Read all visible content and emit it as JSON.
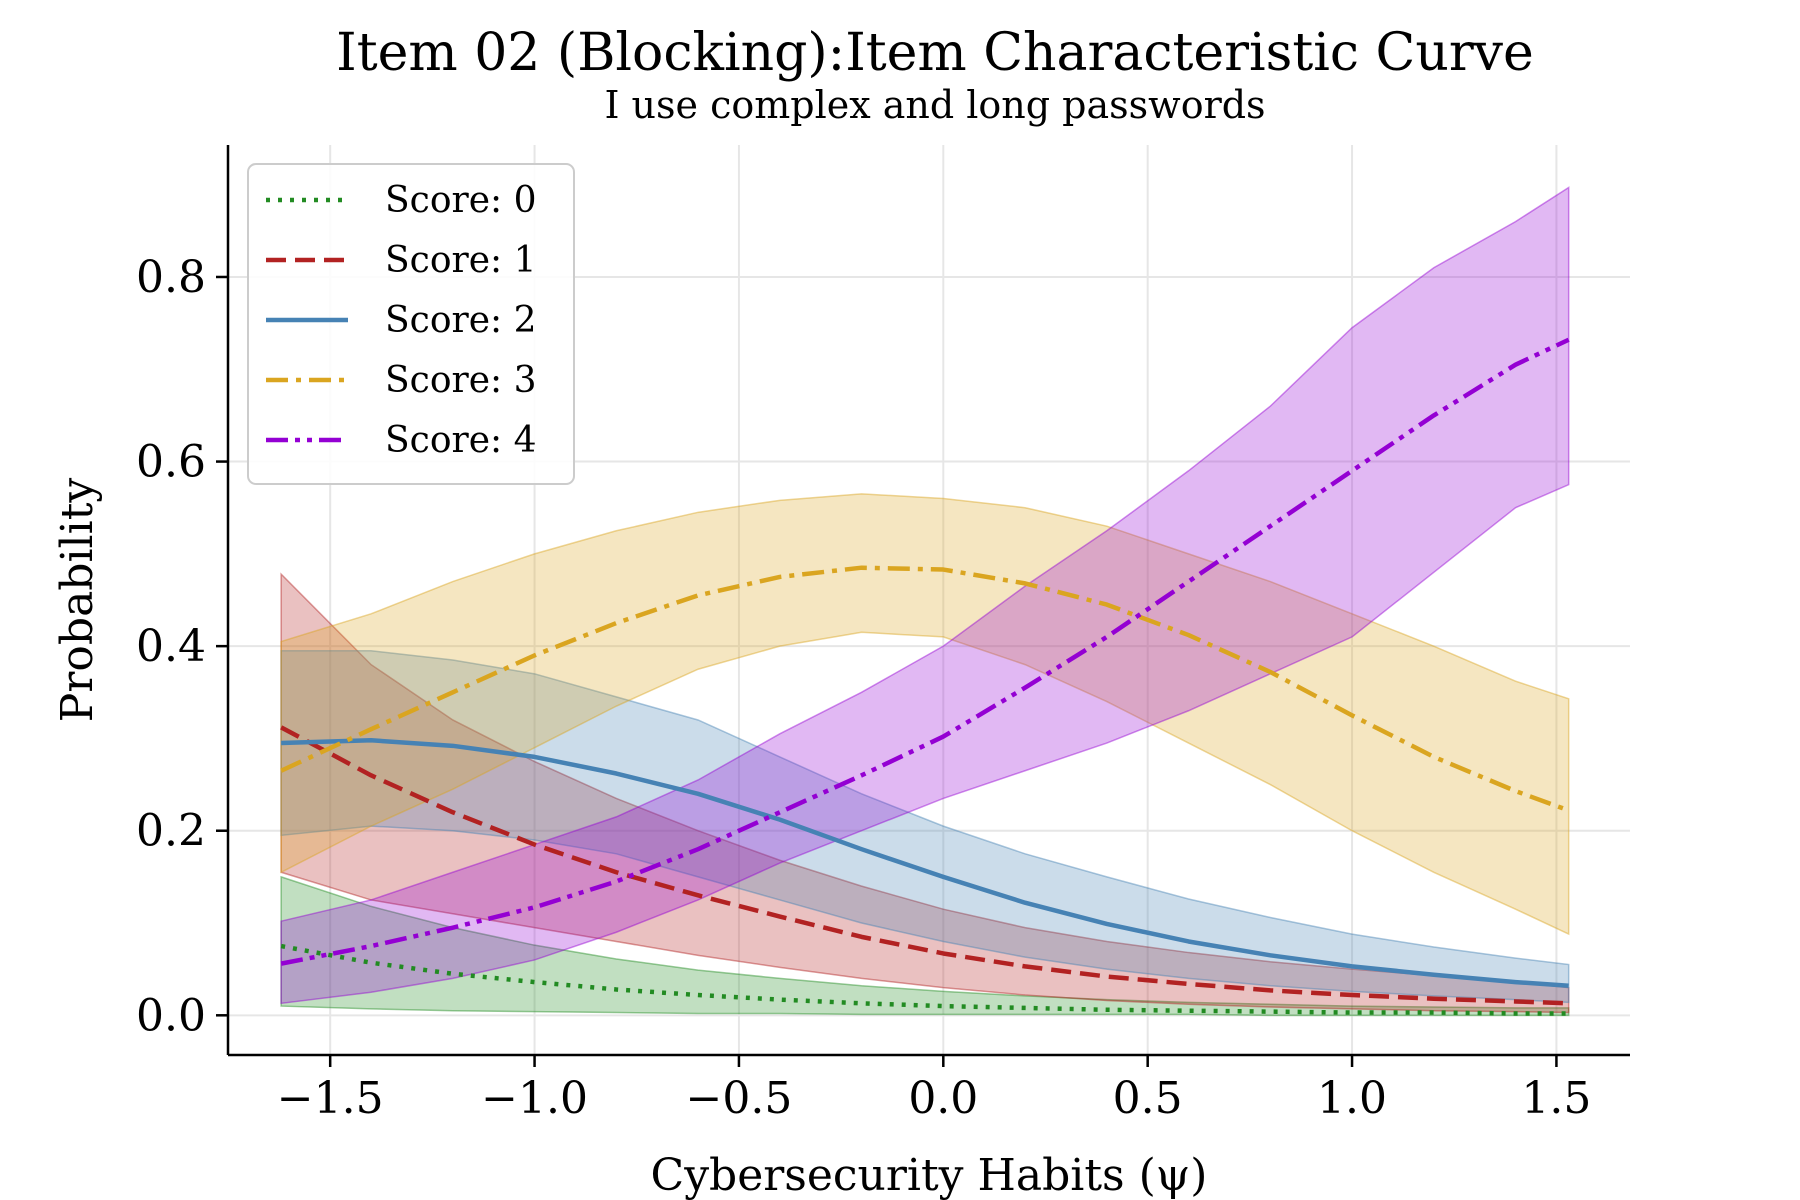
{
  "chart_data": {
    "type": "line",
    "title": "Item 02 (Blocking):Item Characteristic Curve",
    "subtitle": "I use complex and long passwords",
    "xlabel": "Cybersecurity Habits (ψ)",
    "ylabel": "Probability",
    "xlim": [
      -1.75,
      1.68
    ],
    "ylim": [
      -0.043,
      0.943
    ],
    "xticks": [
      -1.5,
      -1.0,
      -0.5,
      0.0,
      0.5,
      1.0,
      1.5
    ],
    "xtick_labels": [
      "−1.5",
      "−1.0",
      "−0.5",
      "0.0",
      "0.5",
      "1.0",
      "1.5"
    ],
    "yticks": [
      0.0,
      0.2,
      0.4,
      0.6,
      0.8
    ],
    "ytick_labels": [
      "0.0",
      "0.2",
      "0.4",
      "0.6",
      "0.8"
    ],
    "grid": true,
    "legend_position": "top-left",
    "x": [
      -1.62,
      -1.4,
      -1.2,
      -1.0,
      -0.8,
      -0.6,
      -0.4,
      -0.2,
      0.0,
      0.2,
      0.4,
      0.6,
      0.8,
      1.0,
      1.2,
      1.4,
      1.53
    ],
    "series": [
      {
        "name": "Score: 0",
        "color": "#228b22",
        "dash": "dotted",
        "mean": [
          0.075,
          0.057,
          0.045,
          0.036,
          0.028,
          0.022,
          0.017,
          0.013,
          0.01,
          0.008,
          0.006,
          0.005,
          0.004,
          0.003,
          0.003,
          0.002,
          0.002
        ],
        "lower": [
          0.01,
          0.007,
          0.005,
          0.004,
          0.003,
          0.002,
          0.002,
          0.001,
          0.001,
          0.001,
          0.001,
          0.001,
          0.0,
          0.0,
          0.0,
          0.0,
          0.0
        ],
        "upper": [
          0.15,
          0.118,
          0.095,
          0.076,
          0.061,
          0.049,
          0.04,
          0.032,
          0.026,
          0.021,
          0.017,
          0.014,
          0.012,
          0.01,
          0.009,
          0.008,
          0.008
        ]
      },
      {
        "name": "Score: 1",
        "color": "#b22222",
        "dash": "dashed",
        "mean": [
          0.312,
          0.26,
          0.22,
          0.185,
          0.155,
          0.13,
          0.107,
          0.085,
          0.067,
          0.053,
          0.042,
          0.034,
          0.027,
          0.022,
          0.018,
          0.015,
          0.013
        ],
        "lower": [
          0.155,
          0.125,
          0.11,
          0.095,
          0.08,
          0.065,
          0.052,
          0.04,
          0.03,
          0.022,
          0.016,
          0.012,
          0.009,
          0.007,
          0.005,
          0.004,
          0.003
        ],
        "upper": [
          0.478,
          0.38,
          0.32,
          0.275,
          0.235,
          0.2,
          0.168,
          0.14,
          0.115,
          0.095,
          0.08,
          0.068,
          0.058,
          0.05,
          0.043,
          0.036,
          0.03
        ]
      },
      {
        "name": "Score: 2",
        "color": "#4682b4",
        "dash": "solid",
        "mean": [
          0.295,
          0.298,
          0.292,
          0.28,
          0.262,
          0.24,
          0.212,
          0.18,
          0.15,
          0.122,
          0.099,
          0.08,
          0.065,
          0.053,
          0.044,
          0.036,
          0.032
        ],
        "lower": [
          0.195,
          0.205,
          0.2,
          0.19,
          0.175,
          0.15,
          0.125,
          0.1,
          0.08,
          0.063,
          0.05,
          0.04,
          0.032,
          0.026,
          0.021,
          0.017,
          0.014
        ],
        "upper": [
          0.395,
          0.395,
          0.385,
          0.37,
          0.345,
          0.32,
          0.28,
          0.24,
          0.205,
          0.175,
          0.15,
          0.126,
          0.106,
          0.088,
          0.074,
          0.062,
          0.055
        ]
      },
      {
        "name": "Score: 3",
        "color": "#daa520",
        "dash": "dashdot",
        "mean": [
          0.265,
          0.31,
          0.35,
          0.39,
          0.425,
          0.455,
          0.475,
          0.485,
          0.483,
          0.468,
          0.445,
          0.412,
          0.372,
          0.325,
          0.28,
          0.243,
          0.222
        ],
        "lower": [
          0.155,
          0.205,
          0.245,
          0.29,
          0.335,
          0.375,
          0.4,
          0.415,
          0.41,
          0.38,
          0.34,
          0.295,
          0.25,
          0.2,
          0.155,
          0.115,
          0.088
        ],
        "upper": [
          0.405,
          0.435,
          0.47,
          0.5,
          0.525,
          0.545,
          0.558,
          0.565,
          0.56,
          0.55,
          0.53,
          0.5,
          0.47,
          0.435,
          0.4,
          0.362,
          0.343
        ]
      },
      {
        "name": "Score: 4",
        "color": "#9400d3",
        "dash": "dashdotdot",
        "mean": [
          0.056,
          0.075,
          0.095,
          0.117,
          0.145,
          0.18,
          0.22,
          0.26,
          0.302,
          0.355,
          0.41,
          0.47,
          0.53,
          0.59,
          0.65,
          0.705,
          0.732
        ],
        "lower": [
          0.013,
          0.025,
          0.04,
          0.06,
          0.09,
          0.125,
          0.165,
          0.2,
          0.235,
          0.265,
          0.295,
          0.33,
          0.37,
          0.41,
          0.48,
          0.55,
          0.575
        ],
        "upper": [
          0.102,
          0.125,
          0.155,
          0.185,
          0.215,
          0.255,
          0.305,
          0.35,
          0.4,
          0.465,
          0.525,
          0.59,
          0.66,
          0.745,
          0.81,
          0.86,
          0.897
        ]
      }
    ]
  }
}
